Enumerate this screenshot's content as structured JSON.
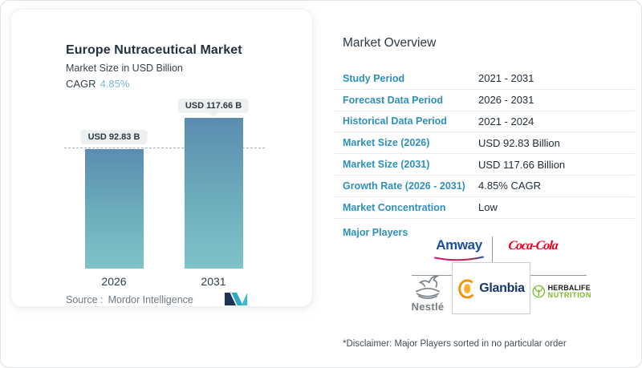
{
  "chart_card": {
    "title": "Europe Nutraceutical Market",
    "subtitle": "Market Size in USD Billion",
    "cagr_label": "CAGR",
    "cagr_value": "4.85%",
    "source_label": "Source :",
    "source_value": "Mordor Intelligence"
  },
  "chart_data": {
    "type": "bar",
    "title": "Europe Nutraceutical Market",
    "ylabel": "Market Size in USD Billion",
    "categories": [
      "2026",
      "2031"
    ],
    "values": [
      92.83,
      117.66
    ],
    "value_labels": [
      "USD 92.83 B",
      "USD 117.66 B"
    ],
    "units": "USD Billion",
    "cagr_percent": 4.85,
    "dashed_reference_line": 92.83,
    "grid": false,
    "legend": false,
    "bar_gradient": [
      "#5b8cb0",
      "#80c2c9"
    ]
  },
  "overview": {
    "heading": "Market Overview",
    "rows": [
      {
        "label": "Study Period",
        "value": "2021 - 2031"
      },
      {
        "label": "Forecast Data Period",
        "value": "2026 - 2031"
      },
      {
        "label": "Historical Data Period",
        "value": "2021 - 2024"
      },
      {
        "label": "Market Size (2026)",
        "value": "USD 92.83 Billion"
      },
      {
        "label": "Market Size (2031)",
        "value": "USD 117.66 Billion"
      },
      {
        "label": "Growth Rate (2026 - 2031)",
        "value": "4.85% CAGR"
      },
      {
        "label": "Market Concentration",
        "value": "Low"
      }
    ],
    "major_players_label": "Major Players",
    "major_players": [
      "Amway",
      "Coca-Cola",
      "Nestlé",
      "Glanbia",
      "Herbalife Nutrition"
    ],
    "logos": {
      "amway": "Amway",
      "coca_cola": "Coca-Cola",
      "nestle": "Nestlé",
      "glanbia": "Glanbia",
      "herbalife_line1": "HERBALIFE",
      "herbalife_line2": "NUTRITION"
    },
    "disclaimer": "*Disclaimer: Major Players sorted in no particular order"
  },
  "colors": {
    "label_teal": "#2e90ba",
    "cagr_light_blue": "#79b7d6",
    "text_dark": "#212e39",
    "bar_top": "#5b8cb0",
    "bar_bottom": "#80c2c9",
    "amway_blue": "#1b4f9c",
    "coca_cola_red": "#e4001e",
    "glanbia_navy": "#17356b",
    "glanbia_orange": "#f39200",
    "herbalife_green": "#7ab929",
    "nestle_gray": "#747c82",
    "mordor_navy": "#1d3553",
    "mordor_teal": "#2aa9c5"
  }
}
